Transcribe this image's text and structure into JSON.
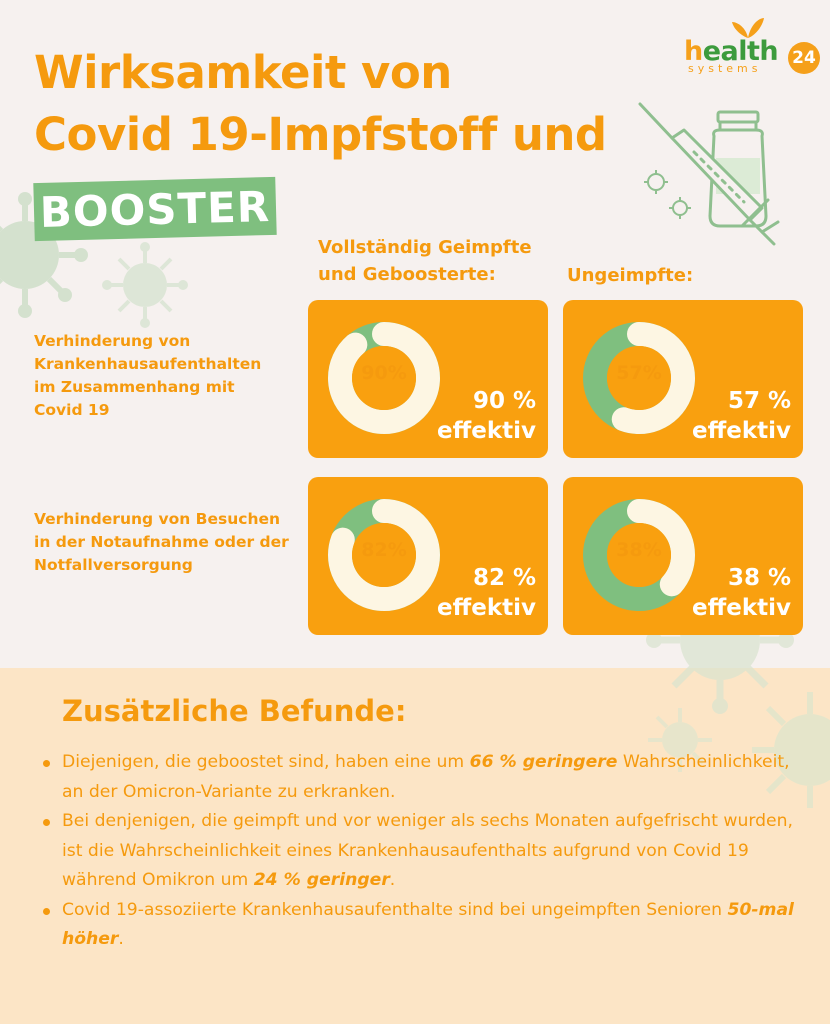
{
  "title": {
    "line1": "Wirksamkeit von",
    "line2": "Covid 19-Impfstoff und",
    "badge": "BOOSTER"
  },
  "logo": {
    "health_h": "h",
    "health_rest": "ealth",
    "systems": "systems",
    "badge": "24"
  },
  "columns": {
    "vaccinated_line1": "Vollständig Geimpfte",
    "vaccinated_line2": "und Geboosterte:",
    "unvaccinated": "Ungeimpfte:"
  },
  "rows": [
    {
      "label": "Verhinderung von Krankenhausaufenthalten im Zusammenhang mit Covid 19",
      "cells": [
        {
          "percent": 90,
          "donut_label": "90%",
          "value_line1": "90 %",
          "value_line2": "effektiv"
        },
        {
          "percent": 57,
          "donut_label": "57%",
          "value_line1": "57 %",
          "value_line2": "effektiv"
        }
      ]
    },
    {
      "label": "Verhinderung von Besuchen in der Notaufnahme oder der Notfallversorgung",
      "cells": [
        {
          "percent": 82,
          "donut_label": "82%",
          "value_line1": "82 %",
          "value_line2": "effektiv"
        },
        {
          "percent": 38,
          "donut_label": "38%",
          "value_line1": "38 %",
          "value_line2": "effektiv"
        }
      ]
    }
  ],
  "findings": {
    "heading": "Zusätzliche Befunde:",
    "items": [
      {
        "pre": "Diejenigen, die geboostet sind, haben eine um ",
        "emph": "66 % geringere",
        "post": " Wahrscheinlichkeit, an der Omicron-Variante zu erkranken."
      },
      {
        "pre": "Bei denjenigen, die geimpft und vor weniger als sechs Monaten aufgefrischt wurden, ist die Wahrscheinlichkeit eines Krankenhausaufenthalts aufgrund von Covid 19 während Omikron um ",
        "emph": "24 % geringer",
        "post": "."
      },
      {
        "pre": "Covid 19-assoziierte Krankenhausaufenthalte sind bei ungeimpften Senioren ",
        "emph": "50-mal höher",
        "post": "."
      }
    ]
  },
  "colors": {
    "orange": "#f59a0e",
    "card": "#f9a00f",
    "green": "#7fbf7f",
    "cream": "#fdf6e3",
    "bottom_panel": "#fce5c6"
  },
  "icons": [
    "virus-icon",
    "syringe-icon",
    "vial-icon",
    "leaf-icon"
  ]
}
